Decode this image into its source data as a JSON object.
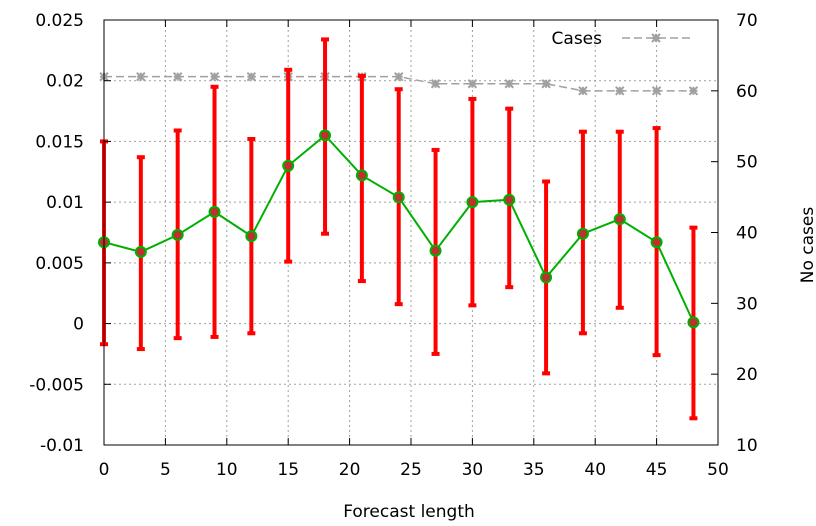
{
  "chart_data": {
    "type": "line",
    "title": "",
    "xlabel": "Forecast length",
    "ylabel": "",
    "y2label": "No cases",
    "xlim": [
      0,
      50
    ],
    "ylim": [
      -0.01,
      0.025
    ],
    "y2lim": [
      10,
      70
    ],
    "grid": true,
    "legend": "top-right",
    "x_ticks": [
      "0",
      "5",
      "10",
      "15",
      "20",
      "25",
      "30",
      "35",
      "40",
      "45",
      "50"
    ],
    "y_ticks": [
      "-0.01",
      "-0.005",
      "0",
      "0.005",
      "0.01",
      "0.015",
      "0.02",
      "0.025"
    ],
    "y2_ticks": [
      "10",
      "20",
      "30",
      "40",
      "50",
      "60",
      "70"
    ],
    "colors": {
      "mean": "#00b000",
      "errorbar": "#ff0000",
      "marker": "#c03030",
      "cases": "#a0a0a0"
    },
    "x": [
      0,
      3,
      6,
      9,
      12,
      15,
      18,
      21,
      24,
      27,
      30,
      33,
      36,
      39,
      42,
      45,
      48
    ],
    "series": [
      {
        "axis": "left",
        "values": [
          0.0067,
          0.0059,
          0.0073,
          0.0092,
          0.0072,
          0.013,
          0.0155,
          0.0122,
          0.0104,
          0.006,
          0.01,
          0.0102,
          0.0038,
          0.0074,
          0.0086,
          0.0067,
          0.0001
        ],
        "err_low": [
          -0.0017,
          -0.0021,
          -0.0012,
          -0.0011,
          -0.0008,
          0.0051,
          0.0074,
          0.0035,
          0.0016,
          -0.0025,
          0.0015,
          0.003,
          -0.0041,
          -0.0008,
          0.0013,
          -0.0026,
          -0.0078
        ],
        "err_high": [
          0.015,
          0.0137,
          0.0159,
          0.0195,
          0.0152,
          0.0209,
          0.0234,
          0.0204,
          0.0193,
          0.0143,
          0.0185,
          0.0177,
          0.0117,
          0.0158,
          0.0158,
          0.0161,
          0.0079
        ]
      },
      {
        "name": "Cases",
        "axis": "right",
        "values": [
          62,
          62,
          62,
          62,
          62,
          62,
          62,
          62,
          62,
          61,
          61,
          61,
          61,
          60,
          60,
          60,
          60
        ]
      }
    ]
  }
}
